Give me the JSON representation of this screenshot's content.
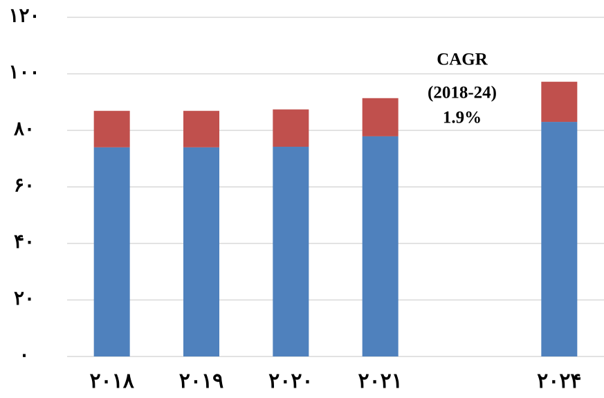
{
  "chart_data": {
    "type": "stacked_bar",
    "categories": [
      "۲۰۱۸",
      "۲۰۱۹",
      "۲۰۲۰",
      "۲۰۲۱",
      null,
      "۲۰۲۴"
    ],
    "series": [
      {
        "color": "#4f81bd",
        "values": [
          74,
          74,
          74.2,
          77.9,
          null,
          83
        ]
      },
      {
        "color": "#c0504d",
        "values": [
          12.9,
          12.9,
          13.2,
          13.5,
          null,
          14.2
        ]
      }
    ],
    "ylim": [
      0,
      120
    ],
    "yticks": [
      {
        "value": 0,
        "label": "۰"
      },
      {
        "value": 20,
        "label": "۲۰"
      },
      {
        "value": 40,
        "label": "۴۰"
      },
      {
        "value": 60,
        "label": "۶۰"
      },
      {
        "value": 80,
        "label": "۸۰"
      },
      {
        "value": 100,
        "label": "۱۰۰"
      },
      {
        "value": 120,
        "label": "۱۲۰"
      }
    ],
    "grid": true,
    "annotation": [
      "CAGR",
      "(2018-24)",
      "1.9%"
    ]
  }
}
